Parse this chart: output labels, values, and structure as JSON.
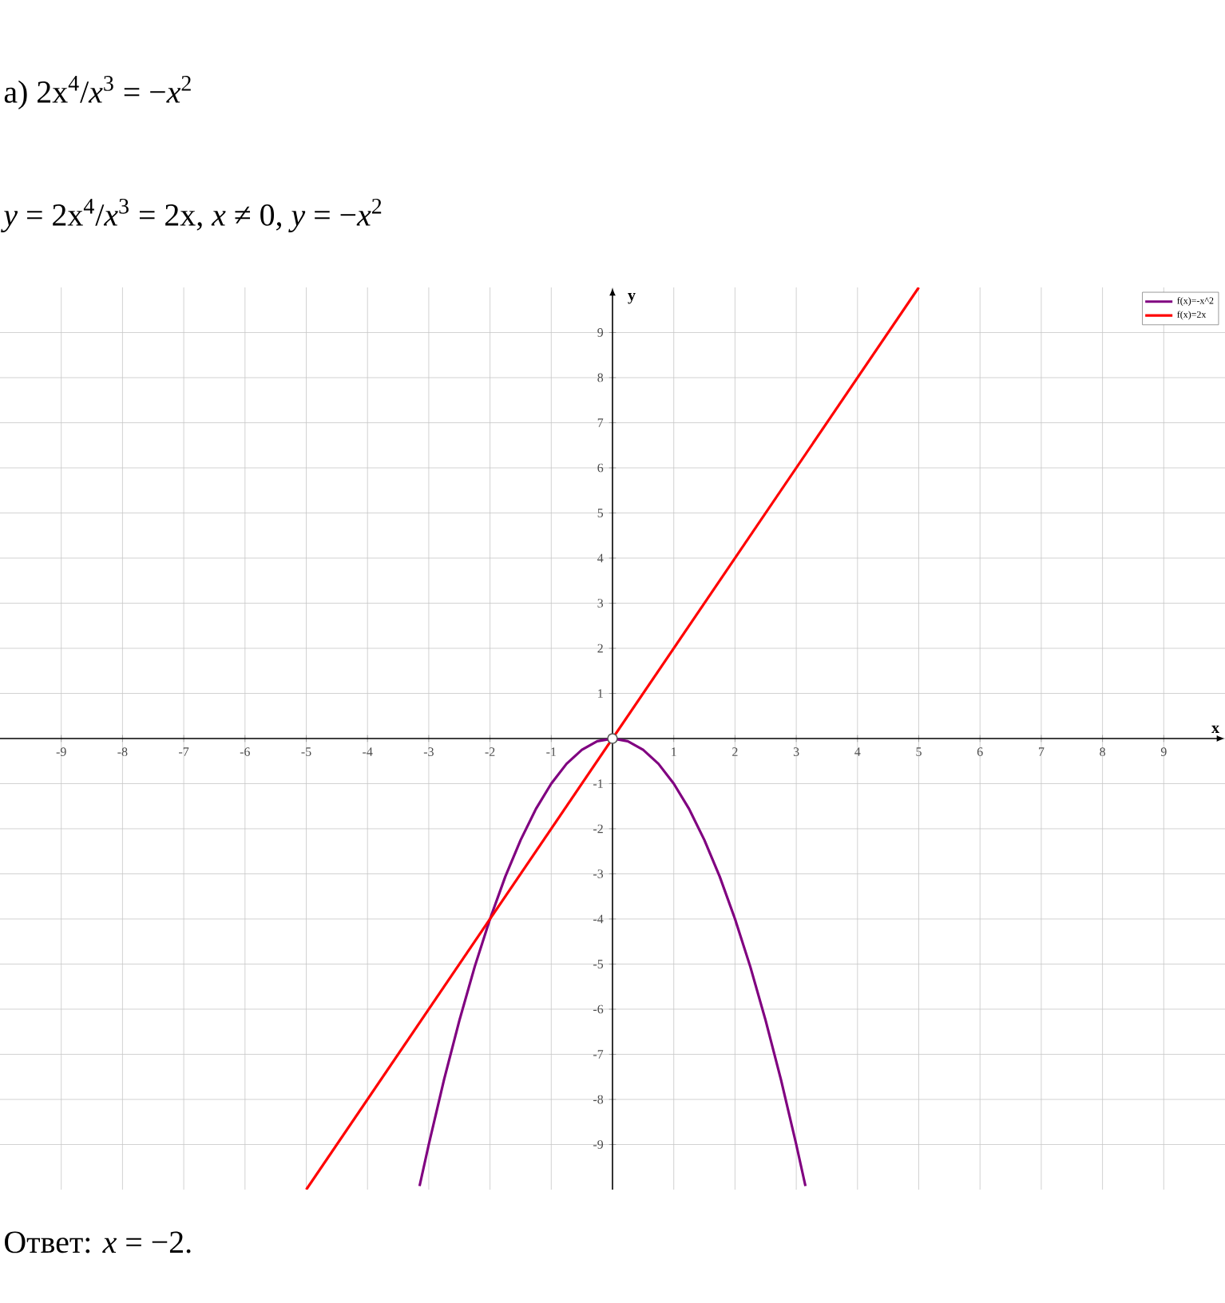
{
  "chart_data": {
    "type": "line",
    "xlabel": "x",
    "ylabel": "y",
    "xlim": [
      -10,
      10
    ],
    "ylim": [
      -10,
      10
    ],
    "xticks": [
      -9,
      -8,
      -7,
      -6,
      -5,
      -4,
      -3,
      -2,
      -1,
      1,
      2,
      3,
      4,
      5,
      6,
      7,
      8,
      9
    ],
    "yticks": [
      -9,
      -8,
      -7,
      -6,
      -5,
      -4,
      -3,
      -2,
      -1,
      1,
      2,
      3,
      4,
      5,
      6,
      7,
      8,
      9
    ],
    "grid": true,
    "legend": "top right",
    "series": [
      {
        "name": "f(x)=-x^2",
        "color": "#800080",
        "x": [
          -3.15,
          -3,
          -2.75,
          -2.5,
          -2.25,
          -2,
          -1.75,
          -1.5,
          -1.25,
          -1,
          -0.75,
          -0.5,
          -0.25,
          0,
          0.25,
          0.5,
          0.75,
          1,
          1.25,
          1.5,
          1.75,
          2,
          2.25,
          2.5,
          2.75,
          3,
          3.15
        ],
        "values": [
          -9.92,
          -9,
          -7.56,
          -6.25,
          -5.06,
          -4,
          -3.06,
          -2.25,
          -1.56,
          -1,
          -0.56,
          -0.25,
          -0.06,
          0,
          -0.06,
          -0.25,
          -0.56,
          -1,
          -1.56,
          -2.25,
          -3.06,
          -4,
          -5.06,
          -6.25,
          -7.56,
          -9,
          -9.92
        ]
      },
      {
        "name": "f(x)=2x",
        "color": "#ff0000",
        "x": [
          -5,
          0,
          5
        ],
        "values": [
          -10,
          0,
          10
        ]
      },
      {
        "type": "scatter",
        "marker": "circle",
        "color": "#555555",
        "x": [
          0
        ],
        "values": [
          0
        ]
      }
    ],
    "annotations": [
      "а) 2x$^{4}$/*x*$^{3}$ = −*x*$^{2}$",
      "*y* = 2x$^{4}$/*x*$^{3}$ = 2x, *x* ≠ 0, *y* = −*x*$^{2}$",
      "Ответ: *x* = −2."
    ]
  }
}
